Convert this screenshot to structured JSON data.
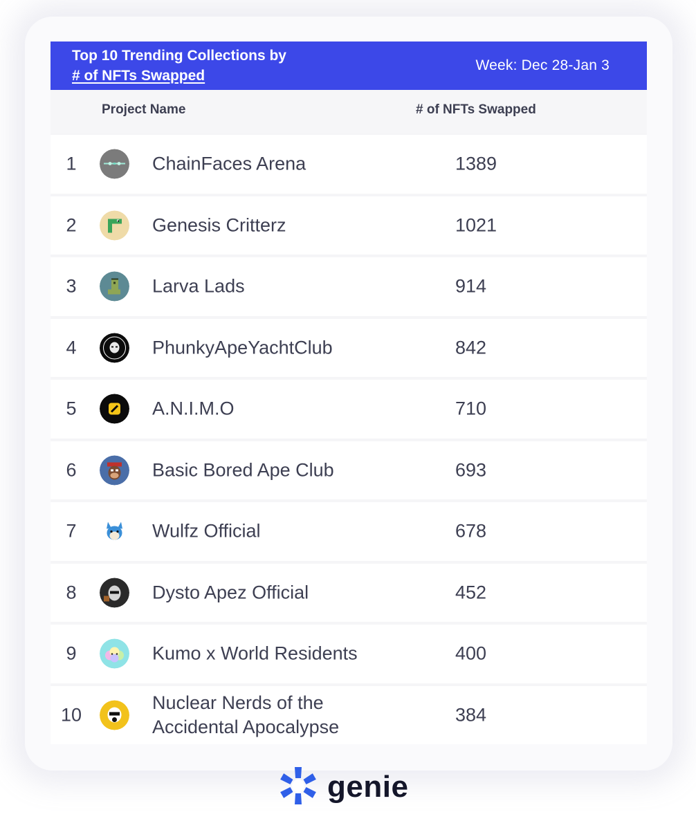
{
  "header": {
    "title_line1": "Top 10 Trending Collections by",
    "title_line2": "# of NFTs Swapped",
    "week": "Week: Dec 28-Jan 3"
  },
  "columns": {
    "project": "Project Name",
    "swapped": "# of NFTs Swapped"
  },
  "rows": [
    {
      "rank": "1",
      "name": "ChainFaces Arena",
      "count": "1389",
      "icon": "chainfaces-arena-avatar-icon"
    },
    {
      "rank": "2",
      "name": "Genesis Critterz",
      "count": "1021",
      "icon": "genesis-critterz-avatar-icon"
    },
    {
      "rank": "3",
      "name": "Larva Lads",
      "count": "914",
      "icon": "larva-lads-avatar-icon"
    },
    {
      "rank": "4",
      "name": "PhunkyApeYachtClub",
      "count": "842",
      "icon": "phunky-ape-yacht-club-avatar-icon"
    },
    {
      "rank": "5",
      "name": "A.N.I.M.O",
      "count": "710",
      "icon": "animo-avatar-icon"
    },
    {
      "rank": "6",
      "name": "Basic Bored Ape Club",
      "count": "693",
      "icon": "basic-bored-ape-club-avatar-icon"
    },
    {
      "rank": "7",
      "name": "Wulfz Official",
      "count": "678",
      "icon": "wulfz-official-avatar-icon"
    },
    {
      "rank": "8",
      "name": "Dysto Apez Official",
      "count": "452",
      "icon": "dysto-apez-official-avatar-icon"
    },
    {
      "rank": "9",
      "name": "Kumo x World Residents",
      "count": "400",
      "icon": "kumo-x-world-residents-avatar-icon"
    },
    {
      "rank": "10",
      "name": "Nuclear Nerds of the Accidental Apocalypse",
      "count": "384",
      "icon": "nuclear-nerds-avatar-icon"
    }
  ],
  "brand": {
    "name": "genie",
    "accent": "#3c48e8",
    "logo_icon": "genie-star-logo-icon"
  }
}
